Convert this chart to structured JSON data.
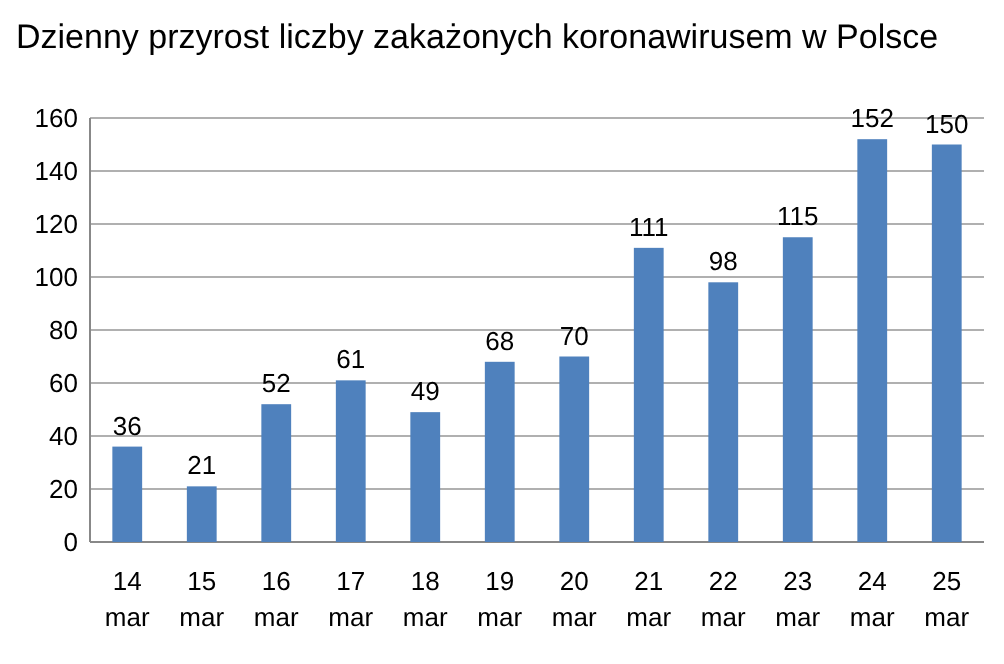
{
  "chart_data": {
    "type": "bar",
    "title": "Dzienny przyrost liczby zakażonych koronawirusem w Polsce",
    "categories": [
      "14 mar",
      "15 mar",
      "16 mar",
      "17 mar",
      "18 mar",
      "19 mar",
      "20 mar",
      "21 mar",
      "22 mar",
      "23 mar",
      "24 mar",
      "25 mar"
    ],
    "values": [
      36,
      21,
      52,
      61,
      49,
      68,
      70,
      111,
      98,
      115,
      152,
      150
    ],
    "color": "#4f81bd",
    "ylim": [
      0,
      160
    ],
    "yticks": [
      0,
      20,
      40,
      60,
      80,
      100,
      120,
      140,
      160
    ],
    "grid": "y",
    "data_labels": true
  }
}
